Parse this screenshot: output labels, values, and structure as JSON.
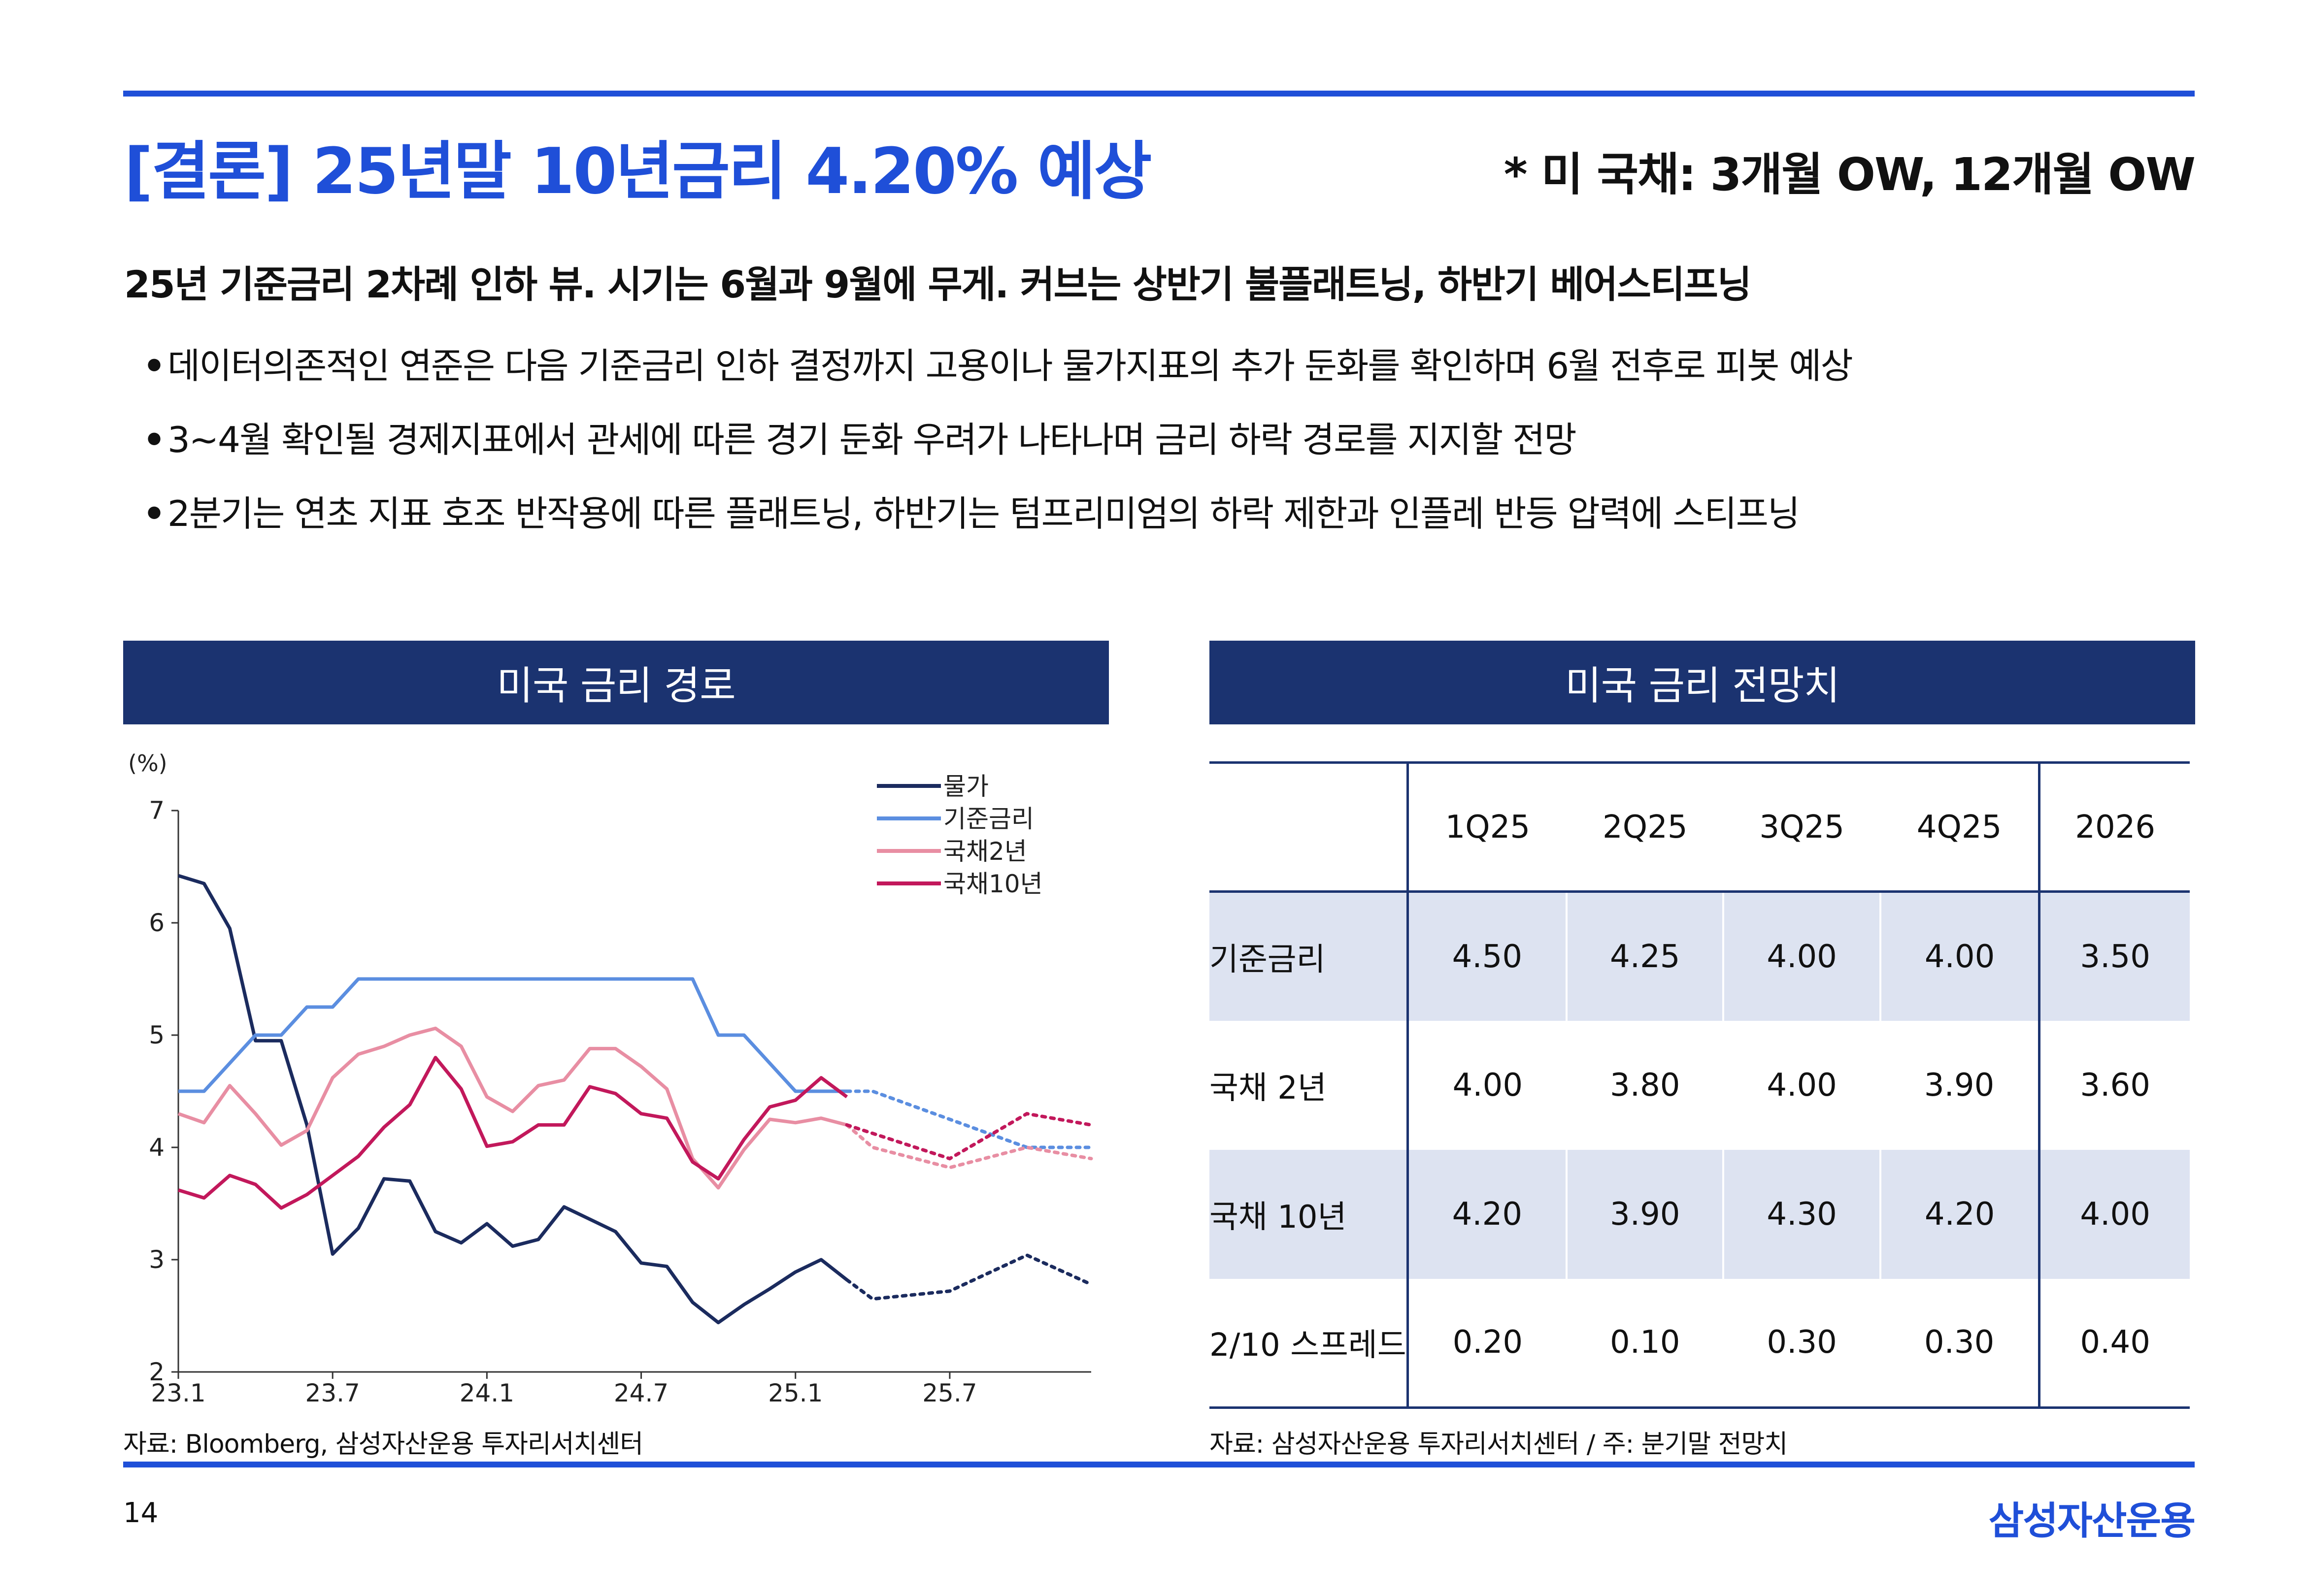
{
  "header": {
    "title": "[결론] 25년말 10년금리 4.20% 예상",
    "subtitle": "* 미 국채: 3개월 OW, 12개월 OW"
  },
  "summary": {
    "headline": "25년 기준금리 2차례 인하 뷰. 시기는 6월과 9월에 무게. 커브는 상반기 불플래트닝, 하반기 베어스티프닝",
    "bullets": [
      "데이터의존적인 연준은 다음 기준금리 인하 결정까지 고용이나 물가지표의 추가 둔화를 확인하며 6월 전후로 피봇 예상",
      "3~4월 확인될 경제지표에서 관세에 따른 경기 둔화 우려가 나타나며 금리 하락 경로를 지지할 전망",
      "2분기는 연초 지표 호조 반작용에 따른 플래트닝, 하반기는 텀프리미엄의 하락 제한과 인플레 반등 압력에 스티프닝"
    ],
    "bullet_mark": "•"
  },
  "left_panel": {
    "header": "미국 금리 경로",
    "source": "자료: Bloomberg, 삼성자산운용 투자리서치센터"
  },
  "right_panel": {
    "header": "미국 금리 전망치",
    "source": "자료: 삼성자산운용 투자리서치센터 / 주: 분기말 전망치",
    "table": {
      "columns": [
        "1Q25",
        "2Q25",
        "3Q25",
        "4Q25",
        "2026"
      ],
      "rows": [
        {
          "label": "기준금리",
          "values": [
            "4.50",
            "4.25",
            "4.00",
            "4.00",
            "3.50"
          ]
        },
        {
          "label": "국채 2년",
          "values": [
            "4.00",
            "3.80",
            "4.00",
            "3.90",
            "3.60"
          ]
        },
        {
          "label": "국채 10년",
          "values": [
            "4.20",
            "3.90",
            "4.30",
            "4.20",
            "4.00"
          ]
        },
        {
          "label": "2/10 스프레드",
          "values": [
            "0.20",
            "0.10",
            "0.30",
            "0.30",
            "0.40"
          ]
        }
      ]
    }
  },
  "footer": {
    "page_number": "14",
    "brand": "삼성자산운용"
  },
  "colors": {
    "accent_blue": "#1f4fd8",
    "navy": "#1b3370",
    "table_shade": "#dde3f1"
  },
  "chart_data": {
    "type": "line",
    "title": "",
    "ylabel": "(%)",
    "xlabel": "",
    "ylim": [
      2,
      7
    ],
    "yticks": [
      "2",
      "3",
      "4",
      "5",
      "6",
      "7"
    ],
    "xticks": [
      {
        "label": "23.1",
        "x": 0
      },
      {
        "label": "23.7",
        "x": 6
      },
      {
        "label": "24.1",
        "x": 12
      },
      {
        "label": "24.7",
        "x": 18
      },
      {
        "label": "25.1",
        "x": 24
      },
      {
        "label": "25.7",
        "x": 30
      }
    ],
    "xlim": [
      0,
      35.5
    ],
    "legend_position": "top-right",
    "grid": false,
    "series": [
      {
        "name": "물가",
        "color": "#1b2b5e",
        "solid": [
          [
            0,
            6.42
          ],
          [
            1,
            6.35
          ],
          [
            2,
            5.95
          ],
          [
            3,
            4.95
          ],
          [
            4,
            4.95
          ],
          [
            5,
            4.2
          ],
          [
            6,
            3.05
          ],
          [
            7,
            3.28
          ],
          [
            8,
            3.72
          ],
          [
            9,
            3.7
          ],
          [
            10,
            3.25
          ],
          [
            11,
            3.15
          ],
          [
            12,
            3.32
          ],
          [
            13,
            3.12
          ],
          [
            14,
            3.18
          ],
          [
            15,
            3.47
          ],
          [
            16,
            3.36
          ],
          [
            17,
            3.25
          ],
          [
            18,
            2.97
          ],
          [
            19,
            2.94
          ],
          [
            20,
            2.62
          ],
          [
            21,
            2.44
          ],
          [
            22,
            2.6
          ],
          [
            23,
            2.74
          ],
          [
            24,
            2.89
          ],
          [
            25,
            3.0
          ],
          [
            26,
            2.82
          ]
        ],
        "forecast": [
          [
            26,
            2.82
          ],
          [
            27,
            2.65
          ],
          [
            30,
            2.72
          ],
          [
            33,
            3.04
          ],
          [
            35.5,
            2.78
          ]
        ]
      },
      {
        "name": "기준금리",
        "color": "#5b8ee0",
        "solid": [
          [
            0,
            4.5
          ],
          [
            1,
            4.5
          ],
          [
            2,
            4.75
          ],
          [
            3,
            5.0
          ],
          [
            4,
            5.0
          ],
          [
            5,
            5.25
          ],
          [
            6,
            5.25
          ],
          [
            7,
            5.5
          ],
          [
            20,
            5.5
          ],
          [
            21,
            5.0
          ],
          [
            22,
            5.0
          ],
          [
            23,
            4.75
          ],
          [
            24,
            4.5
          ],
          [
            26,
            4.5
          ]
        ],
        "forecast": [
          [
            26,
            4.5
          ],
          [
            27,
            4.5
          ],
          [
            30,
            4.25
          ],
          [
            33,
            4.0
          ],
          [
            35.5,
            4.0
          ]
        ]
      },
      {
        "name": "국채2년",
        "color": "#e88ea3",
        "solid": [
          [
            0,
            4.3
          ],
          [
            1,
            4.22
          ],
          [
            2,
            4.55
          ],
          [
            3,
            4.3
          ],
          [
            4,
            4.02
          ],
          [
            5,
            4.15
          ],
          [
            6,
            4.62
          ],
          [
            7,
            4.83
          ],
          [
            8,
            4.9
          ],
          [
            9,
            5.0
          ],
          [
            10,
            5.06
          ],
          [
            11,
            4.9
          ],
          [
            12,
            4.45
          ],
          [
            13,
            4.32
          ],
          [
            14,
            4.55
          ],
          [
            15,
            4.6
          ],
          [
            16,
            4.88
          ],
          [
            17,
            4.88
          ],
          [
            18,
            4.72
          ],
          [
            19,
            4.52
          ],
          [
            20,
            3.9
          ],
          [
            21,
            3.64
          ],
          [
            22,
            3.98
          ],
          [
            23,
            4.25
          ],
          [
            24,
            4.22
          ],
          [
            25,
            4.26
          ],
          [
            26,
            4.2
          ]
        ],
        "forecast": [
          [
            26,
            4.2
          ],
          [
            27,
            4.0
          ],
          [
            30,
            3.82
          ],
          [
            33,
            4.0
          ],
          [
            35.5,
            3.9
          ]
        ]
      },
      {
        "name": "국채10년",
        "color": "#c2185b",
        "solid": [
          [
            0,
            3.62
          ],
          [
            1,
            3.55
          ],
          [
            2,
            3.75
          ],
          [
            3,
            3.67
          ],
          [
            4,
            3.46
          ],
          [
            5,
            3.58
          ],
          [
            6,
            3.75
          ],
          [
            7,
            3.92
          ],
          [
            8,
            4.18
          ],
          [
            9,
            4.38
          ],
          [
            10,
            4.8
          ],
          [
            11,
            4.52
          ],
          [
            12,
            4.01
          ],
          [
            13,
            4.05
          ],
          [
            14,
            4.2
          ],
          [
            15,
            4.2
          ],
          [
            16,
            4.54
          ],
          [
            17,
            4.48
          ],
          [
            18,
            4.3
          ],
          [
            19,
            4.26
          ],
          [
            20,
            3.87
          ],
          [
            21,
            3.72
          ],
          [
            22,
            4.07
          ],
          [
            23,
            4.36
          ],
          [
            24,
            4.42
          ],
          [
            25,
            4.62
          ],
          [
            26,
            4.45
          ]
        ],
        "forecast": [
          [
            26,
            4.2
          ],
          [
            30,
            3.9
          ],
          [
            33,
            4.3
          ],
          [
            35.5,
            4.2
          ]
        ]
      }
    ]
  }
}
